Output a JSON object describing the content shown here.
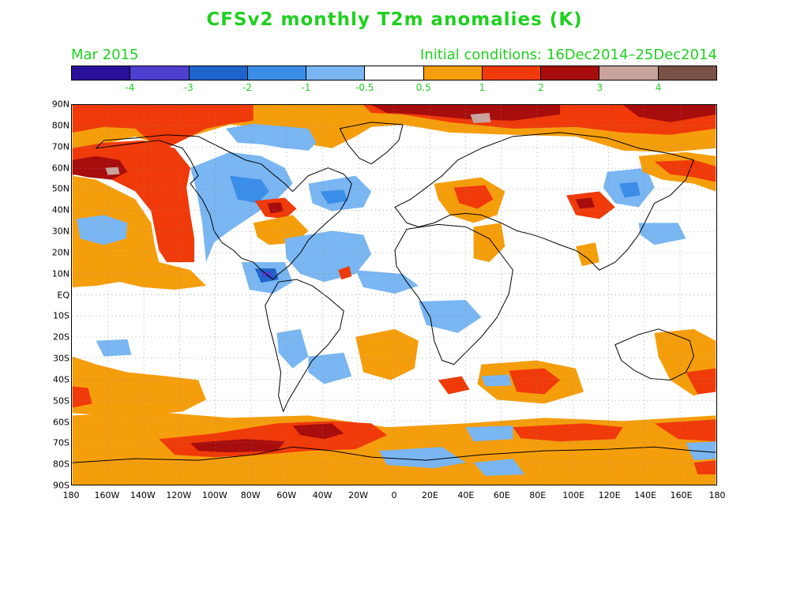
{
  "title": "CFSv2 monthly T2m anomalies (K)",
  "month_label": "Mar 2015",
  "initial_conditions": "Initial conditions: 16Dec2014–25Dec2014",
  "colorbar": {
    "colors": [
      "#2a109a",
      "#4e3fd0",
      "#1f63cc",
      "#3b8ee8",
      "#79b6f2",
      "#ffffff",
      "#f59e0c",
      "#f03a0a",
      "#a80d0d",
      "#c8a49c",
      "#7a5247"
    ],
    "labels": [
      "-4",
      "-3",
      "-2",
      "-1",
      "-0.5",
      "0.5",
      "1",
      "2",
      "3",
      "4"
    ]
  },
  "lat_labels": [
    "90N",
    "80N",
    "70N",
    "60N",
    "50N",
    "40N",
    "30N",
    "20N",
    "10N",
    "EQ",
    "10S",
    "20S",
    "30S",
    "40S",
    "50S",
    "60S",
    "70S",
    "80S",
    "90S"
  ],
  "lon_labels": [
    "180",
    "160W",
    "140W",
    "120W",
    "100W",
    "80W",
    "60W",
    "40W",
    "20W",
    "0",
    "20E",
    "40E",
    "60E",
    "80E",
    "100E",
    "120E",
    "140E",
    "160E",
    "180"
  ],
  "map": {
    "projection": "equirectangular",
    "lon_range": [
      -180,
      180
    ],
    "lat_range": [
      -90,
      90
    ],
    "grid_step_deg": 10,
    "colors": {
      "orange": "#f59e0c",
      "red": "#f03a0a",
      "darkred": "#a80d0d",
      "pink": "#c8a49c",
      "lightblue": "#79b6f2",
      "blue": "#3b8ee8",
      "midblue": "#1f63cc",
      "darkblue": "#4e3fd0"
    }
  }
}
